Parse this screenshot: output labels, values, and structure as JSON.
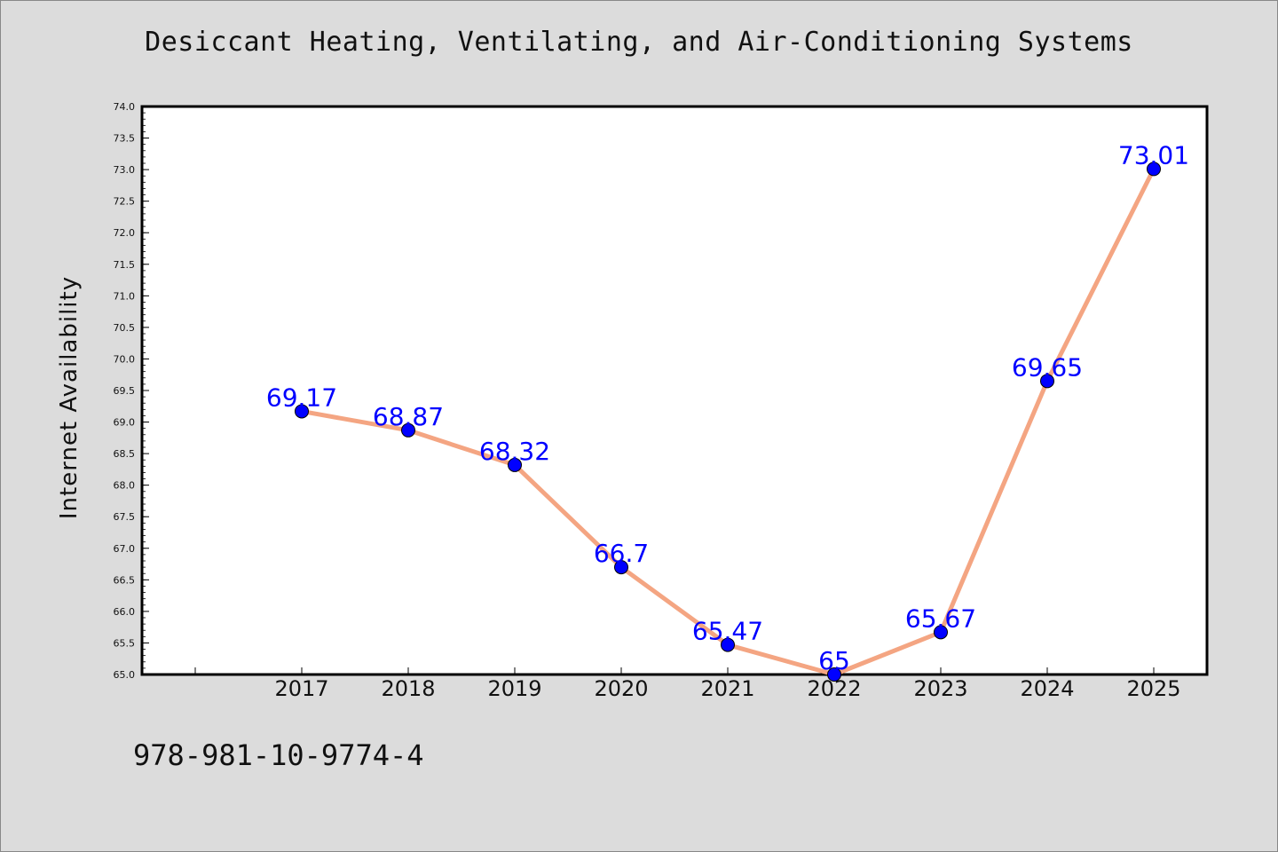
{
  "title": "Desiccant Heating, Ventilating, and Air-Conditioning Systems",
  "footer_code": "978-981-10-9774-4",
  "chart_data": {
    "type": "line",
    "title": "Desiccant Heating, Ventilating, and Air-Conditioning Systems",
    "xlabel": "",
    "ylabel": "Internet Availability",
    "x": [
      "2017",
      "2018",
      "2019",
      "2020",
      "2021",
      "2022",
      "2023",
      "2024",
      "2025"
    ],
    "series": [
      {
        "values": [
          69.17,
          68.87,
          68.32,
          66.7,
          65.47,
          65,
          65.67,
          69.65,
          73.01
        ],
        "labels": [
          "69.17",
          "68.87",
          "68.32",
          "66.7",
          "65.47",
          "65",
          "65.67",
          "69.65",
          "73.01"
        ],
        "line_color": "#f4a582",
        "marker_color": "#0000ff"
      }
    ],
    "ylim": [
      65.0,
      74.0
    ],
    "yticks": [
      "65.0",
      "65.5",
      "66.0",
      "66.5",
      "67.0",
      "67.5",
      "68.0",
      "68.5",
      "69.0",
      "69.5",
      "70.0",
      "70.5",
      "71.0",
      "71.5",
      "72.0",
      "72.5",
      "73.0",
      "73.5",
      "74.0"
    ],
    "grid": false,
    "legend": "none",
    "label_color": "#0000ff"
  }
}
